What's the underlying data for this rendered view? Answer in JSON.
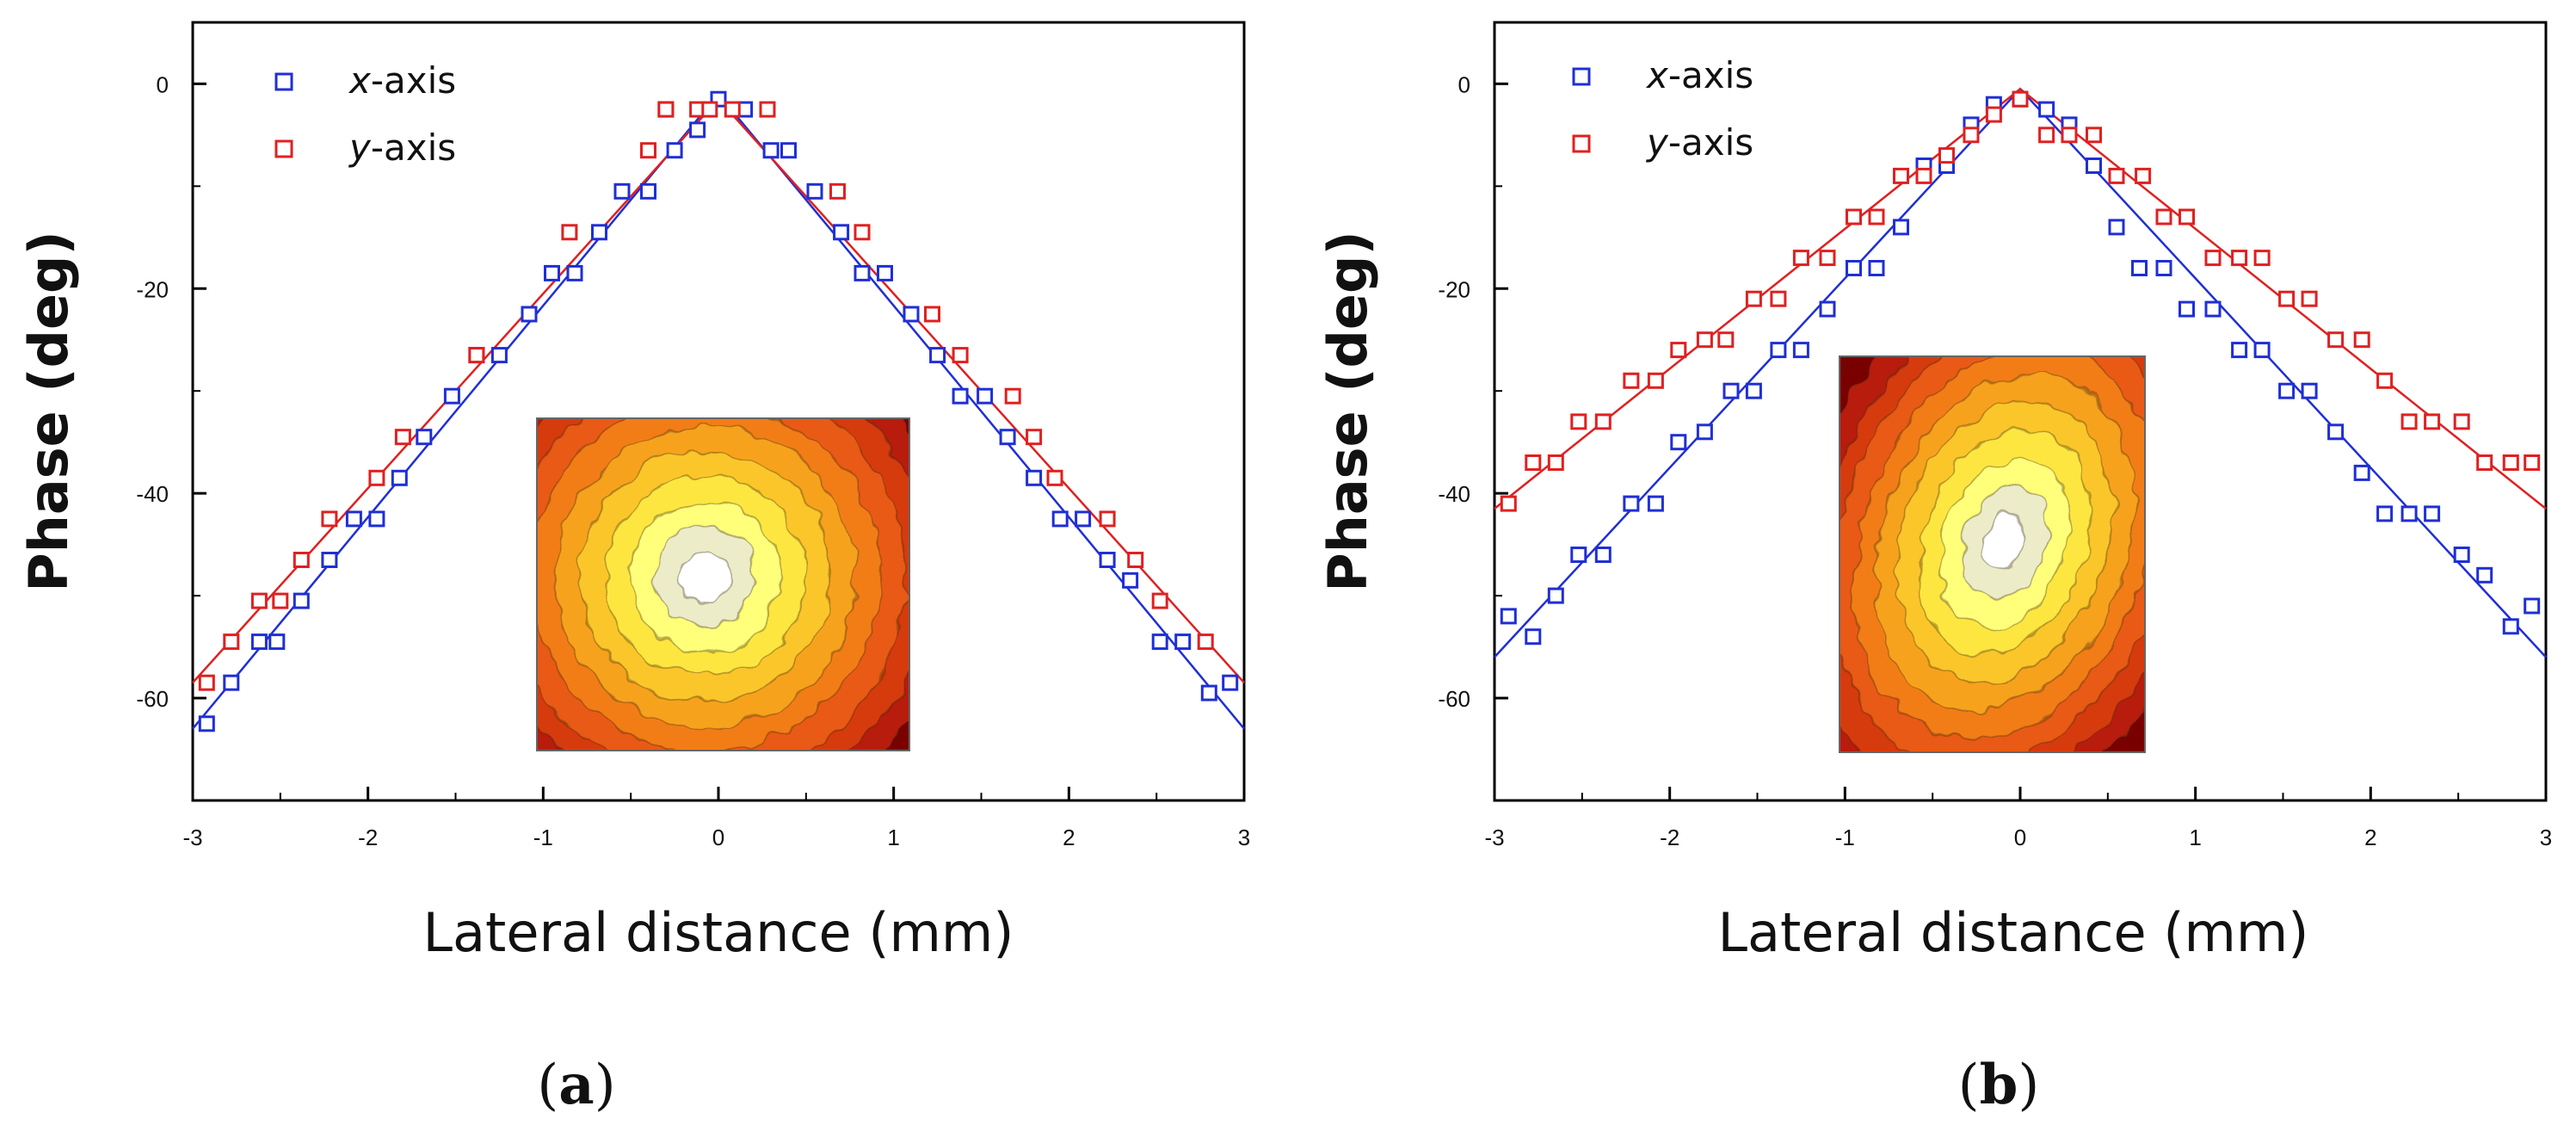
{
  "chart_data": [
    {
      "type": "scatter",
      "panel_label": "a",
      "xlabel": "Lateral distance (mm)",
      "ylabel": "Phase (deg)",
      "xlim": [
        -3,
        3
      ],
      "ylim": [
        -70,
        6
      ],
      "xticks": [
        "-3",
        "-2",
        "-1",
        "0",
        "1",
        "2",
        "3"
      ],
      "yticks": [
        "0",
        "-20",
        "-40",
        "-60"
      ],
      "legend": [
        {
          "italic": "x",
          "rest": "-axis",
          "color": "#1f2fd6"
        },
        {
          "italic": "y",
          "rest": "-axis",
          "color": "#e02020"
        }
      ],
      "series": [
        {
          "name": "x-axis",
          "color": "#1f2fd6",
          "x": [
            -2.92,
            -2.78,
            -2.62,
            -2.52,
            -2.38,
            -2.22,
            -2.08,
            -1.95,
            -1.82,
            -1.68,
            -1.52,
            -1.38,
            -1.25,
            -1.08,
            -0.95,
            -0.82,
            -0.68,
            -0.55,
            -0.4,
            -0.25,
            -0.12,
            0.0,
            0.15,
            0.3,
            0.4,
            0.55,
            0.7,
            0.82,
            0.95,
            1.1,
            1.25,
            1.38,
            1.52,
            1.65,
            1.8,
            1.95,
            2.08,
            2.22,
            2.35,
            2.52,
            2.65,
            2.8,
            2.92
          ],
          "y": [
            -62.5,
            -58.5,
            -54.5,
            -54.5,
            -50.5,
            -46.5,
            -42.5,
            -42.5,
            -38.5,
            -34.5,
            -30.5,
            -26.5,
            -26.5,
            -22.5,
            -18.5,
            -18.5,
            -14.5,
            -10.5,
            -10.5,
            -6.5,
            -4.5,
            -1.5,
            -2.5,
            -6.5,
            -6.5,
            -10.5,
            -14.5,
            -18.5,
            -18.5,
            -22.5,
            -26.5,
            -30.5,
            -30.5,
            -34.5,
            -38.5,
            -42.5,
            -42.5,
            -46.5,
            -48.5,
            -54.5,
            -54.5,
            -59.5,
            -58.5
          ]
        },
        {
          "name": "y-axis",
          "color": "#e02020",
          "x": [
            -2.92,
            -2.78,
            -2.62,
            -2.5,
            -2.38,
            -2.22,
            -1.95,
            -1.8,
            -1.38,
            -0.85,
            -0.4,
            -0.3,
            -0.12,
            -0.3,
            -0.05,
            0.08,
            0.28,
            0.68,
            0.82,
            1.22,
            1.38,
            1.68,
            1.8,
            1.92,
            2.22,
            2.38,
            2.52,
            2.78
          ],
          "y": [
            -58.5,
            -54.5,
            -50.5,
            -50.5,
            -46.5,
            -42.5,
            -38.5,
            -34.5,
            -26.5,
            -14.5,
            -6.5,
            -2.5,
            -2.5,
            -2.5,
            -2.5,
            -2.5,
            -2.5,
            -10.5,
            -14.5,
            -22.5,
            -26.5,
            -30.5,
            -34.5,
            -38.5,
            -42.5,
            -46.5,
            -50.5,
            -54.5
          ]
        }
      ],
      "fit_lines": [
        {
          "name": "x-axis fit",
          "color": "#1f2fd6",
          "x": [
            -3,
            0,
            3
          ],
          "y": [
            -63,
            -1,
            -63
          ]
        },
        {
          "name": "y-axis fit",
          "color": "#e02020",
          "x": [
            -3,
            0,
            3
          ],
          "y": [
            -58.5,
            -1.5,
            -58.5
          ]
        }
      ],
      "inset": {
        "description": "concentric phase contour map, circular pattern",
        "colors": [
          "#7a0000",
          "#b71c0c",
          "#d63a10",
          "#e85a12",
          "#f27d16",
          "#f7a21c",
          "#fbc62a",
          "#fde640",
          "#ffff7a",
          "#ececc8",
          "#ffffff"
        ]
      }
    },
    {
      "type": "scatter",
      "panel_label": "b",
      "xlabel": "Lateral distance (mm)",
      "ylabel": "Phase (deg)",
      "xlim": [
        -3,
        3
      ],
      "ylim": [
        -70,
        6
      ],
      "xticks": [
        "-3",
        "-2",
        "-1",
        "0",
        "1",
        "2",
        "3"
      ],
      "yticks": [
        "0",
        "-20",
        "-40",
        "-60"
      ],
      "legend": [
        {
          "italic": "x",
          "rest": "-axis",
          "color": "#1f2fd6"
        },
        {
          "italic": "y",
          "rest": "-axis",
          "color": "#e02020"
        }
      ],
      "series": [
        {
          "name": "x-axis",
          "color": "#1f2fd6",
          "x": [
            -2.92,
            -2.78,
            -2.65,
            -2.52,
            -2.38,
            -2.22,
            -2.08,
            -1.95,
            -1.8,
            -1.65,
            -1.52,
            -1.38,
            -1.25,
            -1.1,
            -0.95,
            -0.82,
            -0.68,
            -0.55,
            -0.42,
            -0.28,
            -0.15,
            0.0,
            0.15,
            0.28,
            0.42,
            0.55,
            0.68,
            0.82,
            0.95,
            1.1,
            1.25,
            1.38,
            1.52,
            1.65,
            1.8,
            1.95,
            2.08,
            2.22,
            2.35,
            2.52,
            2.65,
            2.8,
            2.92
          ],
          "y": [
            -52,
            -54,
            -50,
            -46,
            -46,
            -41,
            -41,
            -35,
            -34,
            -30,
            -30,
            -26,
            -26,
            -22,
            -18,
            -18,
            -14,
            -8,
            -8,
            -4,
            -2,
            -1.5,
            -2.5,
            -4,
            -8,
            -14,
            -18,
            -18,
            -22,
            -22,
            -26,
            -26,
            -30,
            -30,
            -34,
            -38,
            -42,
            -42,
            -42,
            -46,
            -48,
            -53,
            -51
          ]
        },
        {
          "name": "y-axis",
          "color": "#e02020",
          "x": [
            -2.92,
            -2.78,
            -2.65,
            -2.52,
            -2.38,
            -2.22,
            -2.08,
            -1.95,
            -1.8,
            -1.68,
            -1.52,
            -1.38,
            -1.25,
            -1.1,
            -0.95,
            -0.82,
            -0.68,
            -0.55,
            -0.42,
            -0.28,
            -0.15,
            0.0,
            0.15,
            0.28,
            0.42,
            0.55,
            0.7,
            0.82,
            0.95,
            1.1,
            1.25,
            1.38,
            1.52,
            1.65,
            1.8,
            1.95,
            2.08,
            2.22,
            2.35,
            2.52,
            2.65,
            2.8,
            2.92
          ],
          "y": [
            -41,
            -37,
            -37,
            -33,
            -33,
            -29,
            -29,
            -26,
            -25,
            -25,
            -21,
            -21,
            -17,
            -17,
            -13,
            -13,
            -9,
            -9,
            -7,
            -5,
            -3,
            -1.5,
            -5,
            -5,
            -5,
            -9,
            -9,
            -13,
            -13,
            -17,
            -17,
            -17,
            -21,
            -21,
            -25,
            -25,
            -29,
            -33,
            -33,
            -33,
            -37,
            -37,
            -37
          ]
        }
      ],
      "fit_lines": [
        {
          "name": "x-axis fit",
          "color": "#1f2fd6",
          "x": [
            -3,
            0,
            3
          ],
          "y": [
            -56,
            -0.5,
            -56
          ]
        },
        {
          "name": "y-axis fit",
          "color": "#e02020",
          "x": [
            -3,
            0,
            3
          ],
          "y": [
            -41.5,
            -0.5,
            -41.5
          ]
        }
      ],
      "inset": {
        "description": "phase contour map, elongated diagonal pattern",
        "colors": [
          "#7a0000",
          "#b71c0c",
          "#d63a10",
          "#e85a12",
          "#f27d16",
          "#f7a21c",
          "#fbc62a",
          "#fde640",
          "#ffff7a",
          "#ececc8",
          "#ffffff"
        ]
      }
    }
  ]
}
